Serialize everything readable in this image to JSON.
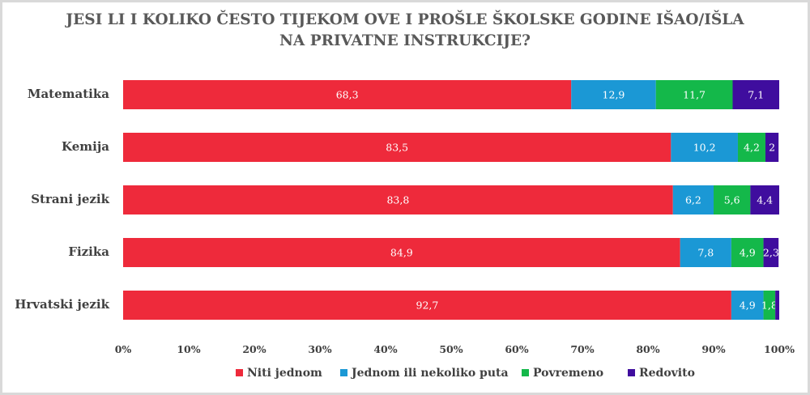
{
  "chart_data": {
    "type": "bar",
    "orientation": "horizontal",
    "stacked": true,
    "title": [
      "JESI LI I KOLIKO ČESTO TIJEKOM OVE I PROŠLE ŠKOLSKE GODINE IŠAO/IŠLA",
      "NA PRIVATNE INSTRUKCIJE?"
    ],
    "categories": [
      "Matematika",
      "Kemija",
      "Strani jezik",
      "Fizika",
      "Hrvatski jezik"
    ],
    "series": [
      {
        "name": "Niti jednom",
        "color": "#ee2a3b",
        "values": [
          68.3,
          83.5,
          83.8,
          84.9,
          92.7
        ],
        "labels": [
          "68,3",
          "83,5",
          "83,8",
          "84,9",
          "92,7"
        ]
      },
      {
        "name": "Jednom ili nekoliko puta",
        "color": "#1b98d5",
        "values": [
          12.9,
          10.2,
          6.2,
          7.8,
          4.9
        ],
        "labels": [
          "12,9",
          "10,2",
          "6,2",
          "7,8",
          "4,9"
        ]
      },
      {
        "name": "Povremeno",
        "color": "#14b84a",
        "values": [
          11.7,
          4.2,
          5.6,
          4.9,
          1.8
        ],
        "labels": [
          "11,7",
          "4,2",
          "5,6",
          "4,9",
          "1,8"
        ]
      },
      {
        "name": "Redovito",
        "color": "#3f0d9e",
        "values": [
          7.1,
          2,
          4.4,
          2.3,
          0.6
        ],
        "labels": [
          "7,1",
          "2",
          "4,4",
          "2,3",
          ""
        ]
      }
    ],
    "xlim": [
      0,
      100
    ],
    "x_ticks": [
      "0%",
      "10%",
      "20%",
      "30%",
      "40%",
      "50%",
      "60%",
      "70%",
      "80%",
      "90%",
      "100%"
    ],
    "legend_position": "bottom",
    "grid": false
  }
}
